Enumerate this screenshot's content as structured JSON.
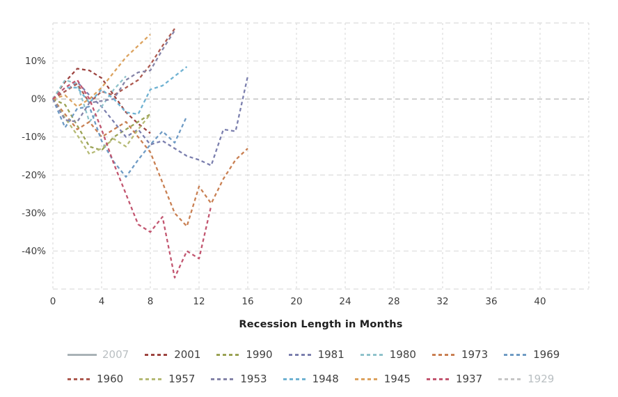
{
  "chart_data": {
    "type": "line",
    "title": "",
    "xlabel": "Recession Length in Months",
    "ylabel": "",
    "x_max": 44,
    "grid_x_step": 4,
    "ylim": [
      -50,
      20
    ],
    "grid_y_step": 10,
    "x_tick_labels": [
      "0",
      "4",
      "8",
      "12",
      "16",
      "20",
      "24",
      "28",
      "32",
      "36",
      "40"
    ],
    "x_tick_values": [
      0,
      4,
      8,
      12,
      16,
      20,
      24,
      28,
      32,
      36,
      40
    ],
    "y_tick_labels": [
      "10%",
      "0%",
      "-10%",
      "-20%",
      "-30%",
      "-40%"
    ],
    "y_tick_values": [
      10,
      0,
      -10,
      -20,
      -30,
      -40
    ],
    "grid": true,
    "legend_position": "bottom",
    "grid_color": "#dcdcdc",
    "zero_line_color": "#bdbdbd",
    "series": [
      {
        "name": "2007",
        "color": "#a9b2b6",
        "style": "solid",
        "hidden": true,
        "values": []
      },
      {
        "name": "2001",
        "color": "#9d4440",
        "style": "dashed",
        "hidden": false,
        "values": [
          0,
          4.5,
          8,
          7.5,
          5.5,
          1,
          -3.5,
          -6.5,
          -9
        ]
      },
      {
        "name": "1990",
        "color": "#9aa254",
        "style": "dashed",
        "hidden": false,
        "values": [
          0,
          -1.5,
          -7,
          -12.5,
          -13.5,
          -10,
          -8,
          -6,
          -4
        ]
      },
      {
        "name": "1981",
        "color": "#7b7fae",
        "style": "dashed",
        "hidden": false,
        "values": [
          0,
          2,
          4.5,
          1,
          -2,
          -6,
          -10,
          -8,
          -12,
          -11,
          -13,
          -15,
          -16,
          -17.5,
          -8,
          -8.5,
          6
        ]
      },
      {
        "name": "1980",
        "color": "#8fc3cb",
        "style": "dashed",
        "hidden": false,
        "values": [
          0,
          5,
          4,
          -6,
          -2,
          2.5,
          6
        ]
      },
      {
        "name": "1973",
        "color": "#c98053",
        "style": "dashed",
        "hidden": false,
        "values": [
          0,
          -4,
          -8,
          -6,
          -10,
          -8,
          -6,
          -10,
          -14,
          -22,
          -30,
          -33.5,
          -23,
          -27.5,
          -21,
          -16,
          -13
        ]
      },
      {
        "name": "1969",
        "color": "#6f9bc4",
        "style": "dashed",
        "hidden": false,
        "values": [
          0,
          -7.5,
          -2.5,
          -2,
          -11,
          -16.5,
          -20.5,
          -16,
          -12,
          -8.5,
          -11.5,
          -4.5
        ]
      },
      {
        "name": "1960",
        "color": "#ad5a50",
        "style": "dashed",
        "hidden": false,
        "values": [
          0,
          2,
          4,
          -1,
          2,
          1,
          3,
          5,
          9,
          14,
          18.5
        ]
      },
      {
        "name": "1957",
        "color": "#b5ba75",
        "style": "dashed",
        "hidden": false,
        "values": [
          0,
          -5,
          -9.5,
          -14.5,
          -13,
          -10.5,
          -12.5,
          -8,
          -4
        ]
      },
      {
        "name": "1953",
        "color": "#8584a8",
        "style": "dashed",
        "hidden": false,
        "values": [
          0,
          -5.5,
          -6,
          -1,
          -0.5,
          0,
          5,
          7,
          7.5,
          13,
          18
        ]
      },
      {
        "name": "1948",
        "color": "#6fb2d2",
        "style": "dashed",
        "hidden": false,
        "values": [
          0,
          3,
          3,
          -1,
          2.5,
          0,
          -3.5,
          -4,
          2.5,
          3.5,
          6,
          8.5
        ]
      },
      {
        "name": "1945",
        "color": "#dca35f",
        "style": "dashed",
        "hidden": false,
        "values": [
          0,
          1,
          -2,
          0,
          3,
          7,
          11,
          14,
          17
        ]
      },
      {
        "name": "1937",
        "color": "#c25670",
        "style": "dashed",
        "hidden": false,
        "values": [
          0,
          3,
          5,
          0,
          -8,
          -17,
          -25,
          -33,
          -35,
          -31,
          -47,
          -40,
          -42,
          -28
        ]
      },
      {
        "name": "1929",
        "color": "#c6c6c6",
        "style": "dashed",
        "hidden": true,
        "values": []
      }
    ]
  },
  "layout_note": "",
  "legend": {
    "muted_label_color": "#b9bfc2",
    "normal_label_color": "#404040"
  }
}
